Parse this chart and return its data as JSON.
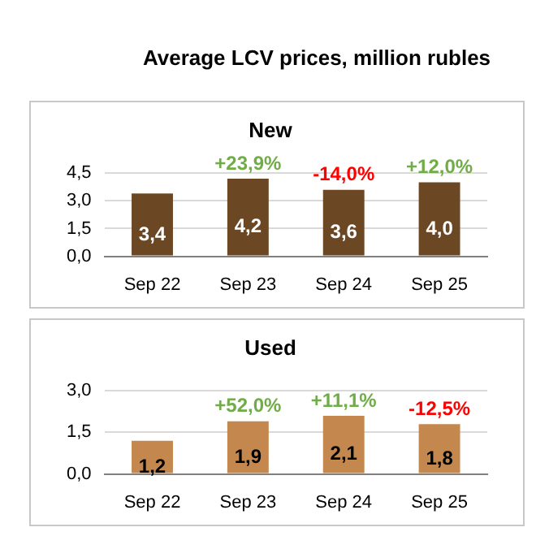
{
  "chart_data": [
    {
      "type": "bar",
      "title": "Average LCV prices, million rubles",
      "subtitle": "New",
      "categories": [
        "Sep 22",
        "Sep 23",
        "Sep 24",
        "Sep 25"
      ],
      "values": [
        3.4,
        4.2,
        3.6,
        4.0
      ],
      "value_labels": [
        "3,4",
        "4,2",
        "3,6",
        "4,0"
      ],
      "color": "#6b4724",
      "ylim": [
        0,
        4.5
      ],
      "yticks": [
        {
          "value": 0,
          "label": "0,0"
        },
        {
          "value": 1.5,
          "label": "1,5"
        },
        {
          "value": 3,
          "label": "3,0"
        },
        {
          "value": 4.5,
          "label": "4,5"
        }
      ],
      "grid": "y",
      "annotations": [
        {
          "text": "+23,9%",
          "x": "Sep 23",
          "y": 4.2
        },
        {
          "text": "-14,0%",
          "x": "Sep 24",
          "y": 3.6
        },
        {
          "text": "+12,0%",
          "x": "Sep 25",
          "y": 4.0
        }
      ]
    },
    {
      "type": "bar",
      "title": "Used",
      "categories": [
        "Sep 22",
        "Sep 23",
        "Sep 24",
        "Sep 25"
      ],
      "values": [
        1.2,
        1.9,
        2.1,
        1.8
      ],
      "value_labels": [
        "1,2",
        "1,9",
        "2,1",
        "1,8"
      ],
      "color": "#c4884f",
      "ylim": [
        0,
        3
      ],
      "yticks": [
        {
          "value": 0,
          "label": "0,0"
        },
        {
          "value": 1.5,
          "label": "1,5"
        },
        {
          "value": 3,
          "label": "3,0"
        }
      ],
      "grid": "y",
      "annotations": [
        {
          "text": "+52,0%",
          "x": "Sep 23",
          "y": 1.9
        },
        {
          "text": "+11,1%",
          "x": "Sep 24",
          "y": 2.1
        },
        {
          "text": "-12,5%",
          "x": "Sep 25",
          "y": 1.8
        }
      ]
    }
  ]
}
